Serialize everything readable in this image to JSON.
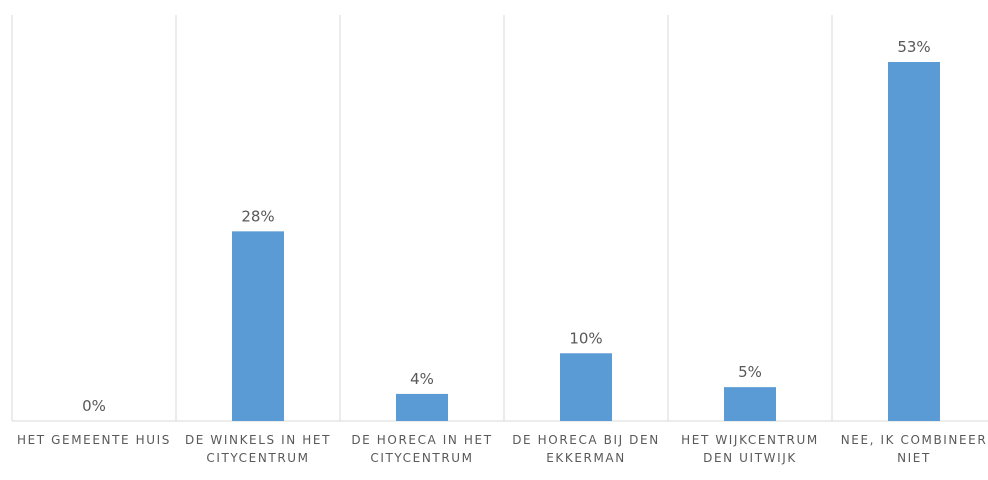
{
  "chart_data": {
    "type": "bar",
    "categories": [
      "HET GEMEENTE HUIS",
      "DE WINKELS IN HET CITYCENTRUM",
      "DE HORECA IN HET CITYCENTRUM",
      "DE HORECA BIJ DEN EKKERMAN",
      "HET WIJKCENTRUM DEN UITWIJK",
      "NEE, IK COMBINEER NIET"
    ],
    "values": [
      0,
      28,
      4,
      10,
      5,
      53
    ],
    "value_labels": [
      "0%",
      "28%",
      "4%",
      "10%",
      "5%",
      "53%"
    ],
    "color": "#5b9bd5"
  }
}
